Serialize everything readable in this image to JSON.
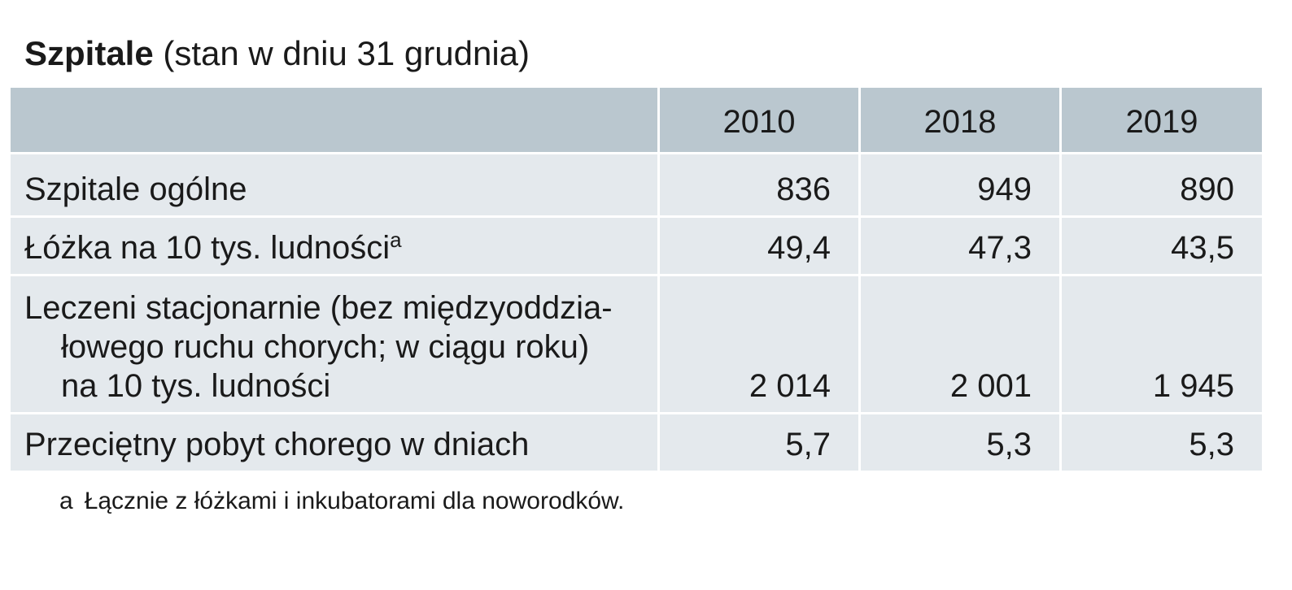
{
  "header": {
    "title": "Szpitale",
    "subtitle": "(stan w dniu 31 grudnia)"
  },
  "table": {
    "columns": [
      2010,
      2018,
      2019
    ],
    "rows": [
      {
        "label": [
          "Szpitale ogólne"
        ],
        "values": [
          836,
          949,
          890
        ]
      },
      {
        "label": [
          "Łóżka na 10 tys. ludności"
        ],
        "note": "a",
        "values": [
          "49,4",
          "47,3",
          "43,5"
        ]
      },
      {
        "label": [
          "Leczeni stacjonarnie (bez międzyoddzia-",
          "łowego ruchu chorych; w ciągu roku)",
          "na 10 tys. ludności"
        ],
        "values": [
          "2 014",
          "2 001",
          "1 945"
        ]
      },
      {
        "label": [
          "Przeciętny pobyt chorego w dniach"
        ],
        "values": [
          "5,7",
          "5,3",
          "5,3"
        ]
      }
    ]
  },
  "footnote": {
    "marker": "a",
    "text": "Łącznie z łóżkami i inkubatorami dla noworodków."
  }
}
